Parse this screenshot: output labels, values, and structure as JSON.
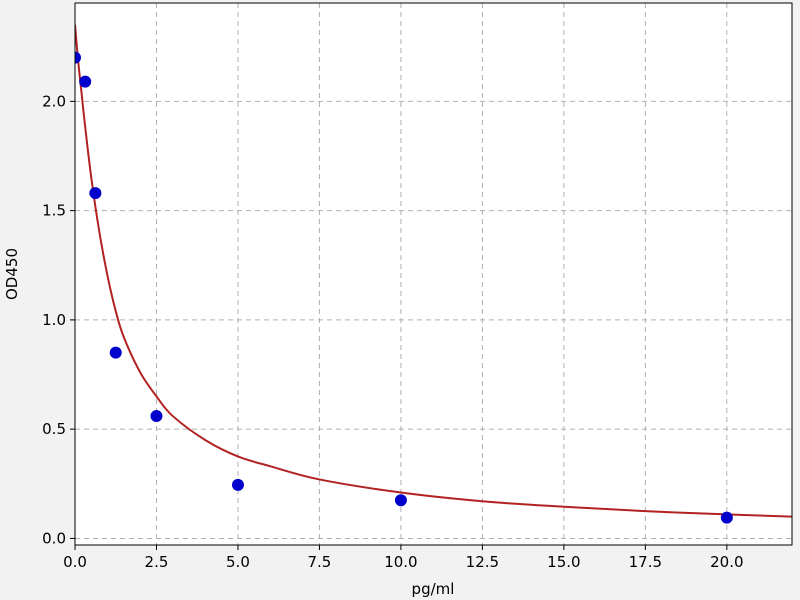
{
  "chart_data": {
    "type": "scatter",
    "xlabel": "pg/ml",
    "ylabel": "OD450",
    "xlim": [
      0,
      22
    ],
    "ylim": [
      -0.03,
      2.45
    ],
    "x_ticks": [
      0.0,
      2.5,
      5.0,
      7.5,
      10.0,
      12.5,
      15.0,
      17.5,
      20.0
    ],
    "x_tick_labels": [
      "0.0",
      "2.5",
      "5.0",
      "7.5",
      "10.0",
      "12.5",
      "15.0",
      "17.5",
      "20.0"
    ],
    "y_ticks": [
      0.0,
      0.5,
      1.0,
      1.5,
      2.0
    ],
    "y_tick_labels": [
      "0.0",
      "0.5",
      "1.0",
      "1.5",
      "2.0"
    ],
    "grid": true,
    "series": [
      {
        "kind": "points",
        "color": "#0000cc",
        "x": [
          0,
          0.3125,
          0.625,
          1.25,
          2.5,
          5,
          10,
          20
        ],
        "y": [
          2.2,
          2.09,
          1.58,
          0.85,
          0.56,
          0.245,
          0.175,
          0.095
        ]
      },
      {
        "kind": "fit-curve",
        "color": "#b22222",
        "x": [
          0,
          0.1,
          0.2,
          0.3,
          0.5,
          0.75,
          1,
          1.25,
          1.5,
          2,
          2.5,
          3,
          4,
          5,
          6,
          7.5,
          10,
          12.5,
          15,
          17.5,
          20,
          22
        ],
        "y": [
          2.35,
          2.18,
          2.04,
          1.9,
          1.65,
          1.4,
          1.2,
          1.04,
          0.92,
          0.76,
          0.65,
          0.56,
          0.45,
          0.375,
          0.33,
          0.27,
          0.21,
          0.17,
          0.145,
          0.125,
          0.11,
          0.1
        ]
      }
    ]
  }
}
